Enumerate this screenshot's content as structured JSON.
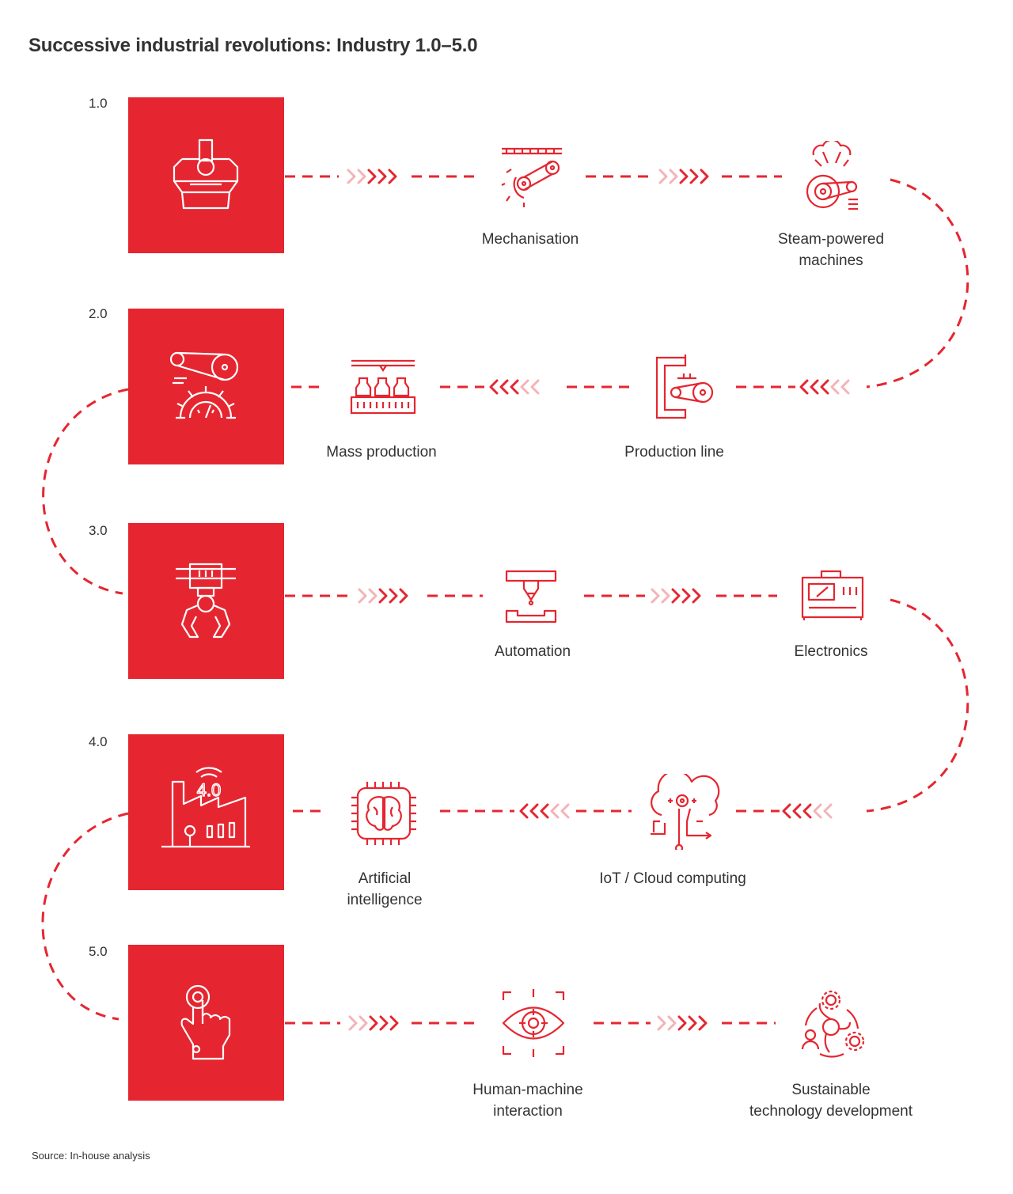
{
  "title": "Successive industrial revolutions: Industry 1.0–5.0",
  "source": "Source: In-house analysis",
  "colors": {
    "accent": "#e52630",
    "text": "#333333",
    "arrow_faded": "#f4b3b7"
  },
  "stages": [
    {
      "level": "1.0",
      "icon": "steam-press-icon",
      "direction": "right",
      "nodes": [
        {
          "icon": "belt-gear-ruler-icon",
          "label": [
            "Mechanisation"
          ]
        },
        {
          "icon": "steam-engine-icon",
          "label": [
            "Steam-powered",
            "machines"
          ]
        }
      ]
    },
    {
      "level": "2.0",
      "icon": "belt-pulley-gear-icon",
      "direction": "left",
      "nodes": [
        {
          "icon": "bottling-conveyor-icon",
          "label": [
            "Mass production"
          ]
        },
        {
          "icon": "press-conveyor-icon",
          "label": [
            "Production line"
          ]
        }
      ]
    },
    {
      "level": "3.0",
      "icon": "robotic-claw-icon",
      "direction": "right",
      "nodes": [
        {
          "icon": "dispenser-icon",
          "label": [
            "Automation"
          ]
        },
        {
          "icon": "electronic-device-icon",
          "label": [
            "Electronics"
          ]
        }
      ]
    },
    {
      "level": "4.0",
      "icon": "smart-factory-icon",
      "icon_text": "4.0",
      "direction": "left",
      "nodes": [
        {
          "icon": "ai-chip-brain-icon",
          "label": [
            "Artificial",
            "intelligence"
          ]
        },
        {
          "icon": "cloud-circuit-icon",
          "label": [
            "IoT / Cloud computing"
          ]
        }
      ]
    },
    {
      "level": "5.0",
      "icon": "touch-hand-icon",
      "direction": "right",
      "nodes": [
        {
          "icon": "eye-target-icon",
          "label": [
            "Human-machine",
            "interaction"
          ]
        },
        {
          "icon": "sustainability-cycle-icon",
          "label": [
            "Sustainable",
            "technology development"
          ]
        }
      ]
    }
  ]
}
